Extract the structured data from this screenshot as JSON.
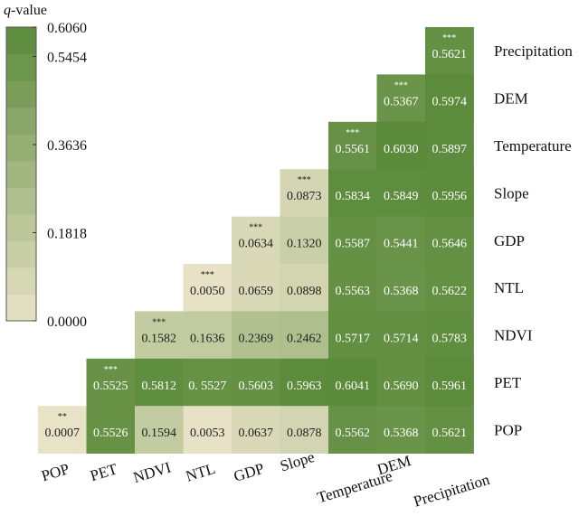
{
  "chart_data": {
    "type": "heatmap",
    "rows": [
      "Precipitation",
      "DEM",
      "Temperature",
      "Slope",
      "GDP",
      "NTL",
      "NDVI",
      "PET",
      "POP"
    ],
    "columns": [
      "POP",
      "PET",
      "NDVI",
      "NTL",
      "GDP",
      "Slope",
      "Temperature",
      "DEM",
      "Precipitation"
    ],
    "cells": [
      {
        "row": 0,
        "col": 8,
        "value": "0.5621",
        "sig": "***"
      },
      {
        "row": 1,
        "col": 7,
        "value": "0.5367",
        "sig": "***"
      },
      {
        "row": 1,
        "col": 8,
        "value": "0.5974"
      },
      {
        "row": 2,
        "col": 6,
        "value": "0.5561",
        "sig": "***"
      },
      {
        "row": 2,
        "col": 7,
        "value": "0.6030"
      },
      {
        "row": 2,
        "col": 8,
        "value": "0.5897"
      },
      {
        "row": 3,
        "col": 5,
        "value": "0.0873",
        "sig": "***"
      },
      {
        "row": 3,
        "col": 6,
        "value": "0.5834"
      },
      {
        "row": 3,
        "col": 7,
        "value": "0.5849"
      },
      {
        "row": 3,
        "col": 8,
        "value": "0.5956"
      },
      {
        "row": 4,
        "col": 4,
        "value": "0.0634",
        "sig": "***"
      },
      {
        "row": 4,
        "col": 5,
        "value": "0.1320"
      },
      {
        "row": 4,
        "col": 6,
        "value": "0.5587"
      },
      {
        "row": 4,
        "col": 7,
        "value": "0.5441"
      },
      {
        "row": 4,
        "col": 8,
        "value": "0.5646"
      },
      {
        "row": 5,
        "col": 3,
        "value": "0.0050",
        "sig": "***"
      },
      {
        "row": 5,
        "col": 4,
        "value": "0.0659"
      },
      {
        "row": 5,
        "col": 5,
        "value": "0.0898"
      },
      {
        "row": 5,
        "col": 6,
        "value": "0.5563"
      },
      {
        "row": 5,
        "col": 7,
        "value": "0.5368"
      },
      {
        "row": 5,
        "col": 8,
        "value": "0.5622"
      },
      {
        "row": 6,
        "col": 2,
        "value": "0.1582",
        "sig": "***"
      },
      {
        "row": 6,
        "col": 3,
        "value": "0.1636"
      },
      {
        "row": 6,
        "col": 4,
        "value": "0.2369"
      },
      {
        "row": 6,
        "col": 5,
        "value": "0.2462"
      },
      {
        "row": 6,
        "col": 6,
        "value": "0.5717"
      },
      {
        "row": 6,
        "col": 7,
        "value": "0.5714"
      },
      {
        "row": 6,
        "col": 8,
        "value": "0.5783"
      },
      {
        "row": 7,
        "col": 1,
        "value": "0.5525",
        "sig": "***"
      },
      {
        "row": 7,
        "col": 2,
        "value": "0.5812"
      },
      {
        "row": 7,
        "col": 3,
        "value": "0. 5527"
      },
      {
        "row": 7,
        "col": 4,
        "value": "0.5603"
      },
      {
        "row": 7,
        "col": 5,
        "value": "0.5963"
      },
      {
        "row": 7,
        "col": 6,
        "value": "0.6041"
      },
      {
        "row": 7,
        "col": 7,
        "value": "0.5690"
      },
      {
        "row": 7,
        "col": 8,
        "value": "0.5961"
      },
      {
        "row": 8,
        "col": 0,
        "value": "0.0007",
        "sig": "**"
      },
      {
        "row": 8,
        "col": 1,
        "value": "0.5526"
      },
      {
        "row": 8,
        "col": 2,
        "value": "0.1594"
      },
      {
        "row": 8,
        "col": 3,
        "value": "0.0053"
      },
      {
        "row": 8,
        "col": 4,
        "value": "0.0637"
      },
      {
        "row": 8,
        "col": 5,
        "value": "0.0878"
      },
      {
        "row": 8,
        "col": 6,
        "value": "0.5562"
      },
      {
        "row": 8,
        "col": 7,
        "value": "0.5368"
      },
      {
        "row": 8,
        "col": 8,
        "value": "0.5621"
      }
    ],
    "colorbar": {
      "title": "q-value",
      "ticks": [
        "0.6060",
        "0.5454",
        "0.3636",
        "0.1818",
        "0.0000"
      ],
      "tick_values": [
        0.606,
        0.5454,
        0.3636,
        0.1818,
        0.0
      ],
      "range": [
        0.0,
        0.606
      ],
      "color_low": "#e8e2c6",
      "color_high": "#5a8a3a",
      "bins": 11
    }
  }
}
